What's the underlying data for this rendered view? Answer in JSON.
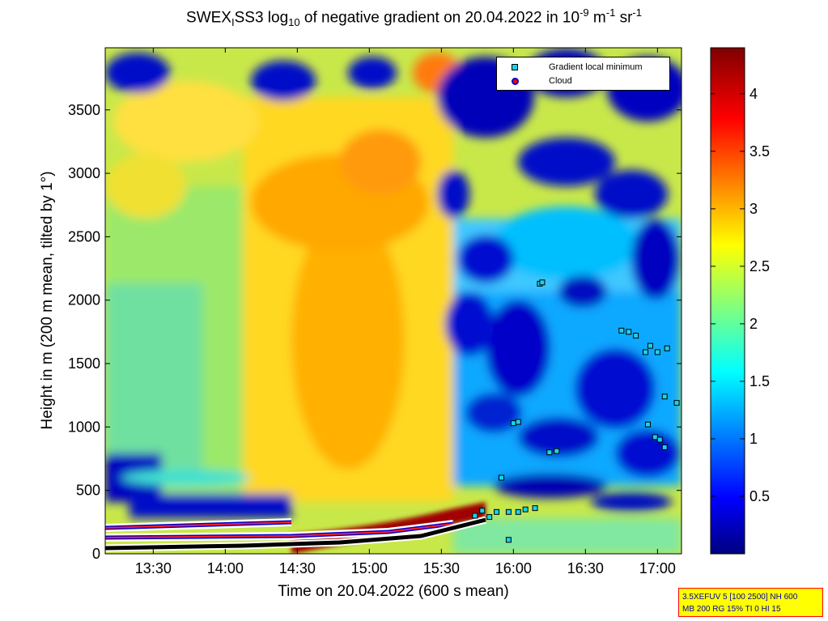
{
  "chart_data": {
    "type": "heatmap",
    "title_parts": {
      "a": "SWEX",
      "b": "I",
      "c": "SS3 log",
      "d": "10",
      "e": " of negative gradient on 20.04.2022 in 10",
      "f": "-9",
      "g": " m",
      "h": "-1",
      "i": " sr",
      "j": "-1"
    },
    "xlabel": "Time on 20.04.2022 (600 s mean)",
    "ylabel": "Height in m (200 m mean, tilted by 1°)",
    "xlim": [
      "13:10",
      "17:10"
    ],
    "ylim": [
      0,
      3990
    ],
    "x_ticks": [
      "13:30",
      "14:00",
      "14:30",
      "15:00",
      "15:30",
      "16:00",
      "16:30",
      "17:00"
    ],
    "y_ticks": [
      "0",
      "500",
      "1000",
      "1500",
      "2000",
      "2500",
      "3000",
      "3500"
    ],
    "colorbar": {
      "range": [
        0,
        4.4
      ],
      "ticks": [
        "0.5",
        "1",
        "1.5",
        "2",
        "2.5",
        "3",
        "3.5",
        "4"
      ],
      "colormap": "jet"
    },
    "legend": {
      "placement": "top-right",
      "entries": [
        {
          "label": "Gradient local minimum",
          "color": "#19d3e6",
          "marker": "square"
        },
        {
          "label": "Cloud",
          "color": "#ff0000",
          "marker": "circle"
        }
      ]
    },
    "gradient_local_minima": [
      {
        "t": "15:44",
        "h": 300
      },
      {
        "t": "15:47",
        "h": 340
      },
      {
        "t": "15:50",
        "h": 290
      },
      {
        "t": "15:53",
        "h": 330
      },
      {
        "t": "15:55",
        "h": 600
      },
      {
        "t": "15:58",
        "h": 330
      },
      {
        "t": "16:02",
        "h": 330
      },
      {
        "t": "16:05",
        "h": 350
      },
      {
        "t": "16:09",
        "h": 360
      },
      {
        "t": "16:00",
        "h": 1030
      },
      {
        "t": "16:02",
        "h": 1040
      },
      {
        "t": "16:15",
        "h": 800
      },
      {
        "t": "16:18",
        "h": 810
      },
      {
        "t": "16:11",
        "h": 2130
      },
      {
        "t": "16:12",
        "h": 2140
      },
      {
        "t": "16:45",
        "h": 1760
      },
      {
        "t": "16:48",
        "h": 1750
      },
      {
        "t": "16:51",
        "h": 1720
      },
      {
        "t": "16:55",
        "h": 1590
      },
      {
        "t": "16:57",
        "h": 1640
      },
      {
        "t": "17:00",
        "h": 1590
      },
      {
        "t": "17:04",
        "h": 1620
      },
      {
        "t": "16:56",
        "h": 1020
      },
      {
        "t": "16:59",
        "h": 920
      },
      {
        "t": "17:01",
        "h": 900
      },
      {
        "t": "17:03",
        "h": 840
      },
      {
        "t": "17:03",
        "h": 1240
      },
      {
        "t": "17:08",
        "h": 1190
      },
      {
        "t": "15:58",
        "h": 110
      }
    ],
    "cloud_base_layers": [
      {
        "from": "13:10",
        "to": "14:28",
        "h_start": 190,
        "h_end": 240
      },
      {
        "from": "13:10",
        "to": "15:55",
        "h_start": 20,
        "h_end": 280
      },
      {
        "from": "13:10",
        "to": "15:40",
        "h_start": 110,
        "h_end": 200
      }
    ]
  },
  "info_box": {
    "line1": "3.5XEFUV 5 [100 2500] NH 600",
    "line2": "MB 200 RG 15% TI 0 HI 15"
  }
}
